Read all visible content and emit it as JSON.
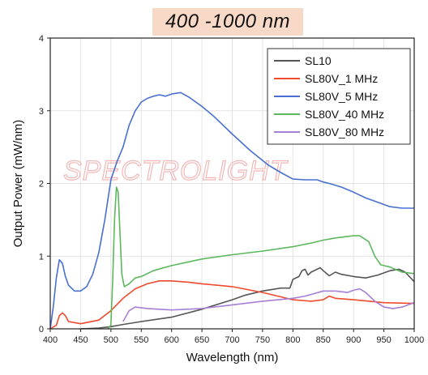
{
  "chart_data": {
    "type": "line",
    "title": "400 -1000 nm",
    "xlabel": "Wavelength (nm)",
    "ylabel": "Output Power (mW/nm)",
    "xlim": [
      400,
      1000
    ],
    "ylim": [
      0,
      4
    ],
    "x_ticks": [
      400,
      450,
      500,
      550,
      600,
      650,
      700,
      750,
      800,
      850,
      900,
      950,
      1000
    ],
    "y_ticks": [
      0,
      1,
      2,
      3,
      4
    ],
    "grid": true,
    "legend_position": "top-right",
    "watermark": "SPECTROLIGHT",
    "series": [
      {
        "name": "SL10",
        "color": "#555555",
        "points": [
          [
            450,
            0
          ],
          [
            480,
            0.01
          ],
          [
            500,
            0.03
          ],
          [
            520,
            0.06
          ],
          [
            550,
            0.1
          ],
          [
            600,
            0.16
          ],
          [
            650,
            0.27
          ],
          [
            700,
            0.4
          ],
          [
            720,
            0.46
          ],
          [
            750,
            0.52
          ],
          [
            780,
            0.56
          ],
          [
            795,
            0.56
          ],
          [
            800,
            0.68
          ],
          [
            810,
            0.72
          ],
          [
            815,
            0.8
          ],
          [
            820,
            0.82
          ],
          [
            825,
            0.74
          ],
          [
            830,
            0.78
          ],
          [
            840,
            0.82
          ],
          [
            845,
            0.84
          ],
          [
            850,
            0.8
          ],
          [
            860,
            0.73
          ],
          [
            870,
            0.78
          ],
          [
            880,
            0.75
          ],
          [
            900,
            0.72
          ],
          [
            920,
            0.7
          ],
          [
            940,
            0.74
          ],
          [
            960,
            0.8
          ],
          [
            975,
            0.82
          ],
          [
            985,
            0.78
          ],
          [
            1000,
            0.65
          ]
        ]
      },
      {
        "name": "SL80V_1 MHz",
        "color": "#f04a2e",
        "points": [
          [
            400,
            0
          ],
          [
            410,
            0.05
          ],
          [
            415,
            0.18
          ],
          [
            420,
            0.22
          ],
          [
            425,
            0.18
          ],
          [
            430,
            0.1
          ],
          [
            450,
            0.07
          ],
          [
            480,
            0.12
          ],
          [
            500,
            0.25
          ],
          [
            520,
            0.42
          ],
          [
            540,
            0.55
          ],
          [
            560,
            0.62
          ],
          [
            580,
            0.66
          ],
          [
            600,
            0.66
          ],
          [
            630,
            0.64
          ],
          [
            650,
            0.62
          ],
          [
            700,
            0.58
          ],
          [
            750,
            0.5
          ],
          [
            780,
            0.44
          ],
          [
            800,
            0.4
          ],
          [
            830,
            0.38
          ],
          [
            850,
            0.4
          ],
          [
            860,
            0.45
          ],
          [
            870,
            0.42
          ],
          [
            900,
            0.4
          ],
          [
            950,
            0.36
          ],
          [
            1000,
            0.35
          ]
        ]
      },
      {
        "name": "SL80V_5 MHz",
        "color": "#4870d0",
        "points": [
          [
            400,
            0
          ],
          [
            405,
            0.3
          ],
          [
            410,
            0.7
          ],
          [
            415,
            0.95
          ],
          [
            420,
            0.9
          ],
          [
            425,
            0.72
          ],
          [
            430,
            0.6
          ],
          [
            440,
            0.52
          ],
          [
            450,
            0.52
          ],
          [
            460,
            0.58
          ],
          [
            470,
            0.75
          ],
          [
            480,
            1.05
          ],
          [
            490,
            1.5
          ],
          [
            500,
            2.05
          ],
          [
            510,
            2.3
          ],
          [
            520,
            2.5
          ],
          [
            530,
            2.8
          ],
          [
            540,
            3.0
          ],
          [
            550,
            3.12
          ],
          [
            560,
            3.17
          ],
          [
            570,
            3.2
          ],
          [
            580,
            3.22
          ],
          [
            590,
            3.2
          ],
          [
            600,
            3.23
          ],
          [
            615,
            3.25
          ],
          [
            630,
            3.18
          ],
          [
            650,
            3.06
          ],
          [
            670,
            2.92
          ],
          [
            700,
            2.68
          ],
          [
            730,
            2.45
          ],
          [
            760,
            2.25
          ],
          [
            780,
            2.15
          ],
          [
            800,
            2.06
          ],
          [
            820,
            2.05
          ],
          [
            840,
            2.05
          ],
          [
            850,
            2.02
          ],
          [
            860,
            2.0
          ],
          [
            880,
            1.95
          ],
          [
            900,
            1.88
          ],
          [
            920,
            1.8
          ],
          [
            940,
            1.74
          ],
          [
            960,
            1.68
          ],
          [
            980,
            1.66
          ],
          [
            1000,
            1.66
          ]
        ]
      },
      {
        "name": "SL80V_40 MHz",
        "color": "#5cb85c",
        "points": [
          [
            495,
            0
          ],
          [
            500,
            0.05
          ],
          [
            503,
            0.7
          ],
          [
            506,
            1.5
          ],
          [
            509,
            1.95
          ],
          [
            512,
            1.88
          ],
          [
            515,
            1.3
          ],
          [
            518,
            0.75
          ],
          [
            522,
            0.58
          ],
          [
            530,
            0.62
          ],
          [
            540,
            0.7
          ],
          [
            550,
            0.72
          ],
          [
            570,
            0.8
          ],
          [
            600,
            0.87
          ],
          [
            650,
            0.96
          ],
          [
            700,
            1.02
          ],
          [
            750,
            1.07
          ],
          [
            800,
            1.13
          ],
          [
            830,
            1.18
          ],
          [
            850,
            1.22
          ],
          [
            870,
            1.25
          ],
          [
            900,
            1.28
          ],
          [
            910,
            1.28
          ],
          [
            925,
            1.2
          ],
          [
            935,
            1.0
          ],
          [
            945,
            0.88
          ],
          [
            960,
            0.85
          ],
          [
            980,
            0.78
          ],
          [
            1000,
            0.76
          ]
        ]
      },
      {
        "name": "SL80V_80 MHz",
        "color": "#a67fd6",
        "points": [
          [
            520,
            0.1
          ],
          [
            530,
            0.25
          ],
          [
            540,
            0.3
          ],
          [
            560,
            0.28
          ],
          [
            600,
            0.26
          ],
          [
            650,
            0.28
          ],
          [
            700,
            0.33
          ],
          [
            750,
            0.38
          ],
          [
            800,
            0.42
          ],
          [
            820,
            0.45
          ],
          [
            850,
            0.52
          ],
          [
            870,
            0.52
          ],
          [
            890,
            0.5
          ],
          [
            900,
            0.53
          ],
          [
            910,
            0.55
          ],
          [
            920,
            0.5
          ],
          [
            935,
            0.38
          ],
          [
            950,
            0.3
          ],
          [
            965,
            0.28
          ],
          [
            980,
            0.3
          ],
          [
            1000,
            0.36
          ]
        ]
      }
    ]
  }
}
